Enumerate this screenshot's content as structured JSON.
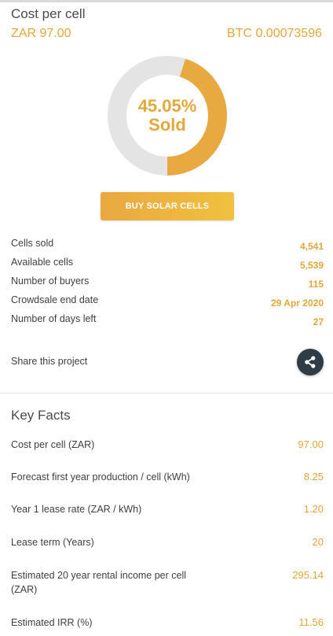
{
  "cost": {
    "title": "Cost per cell",
    "zar": "ZAR 97.00",
    "btc": "BTC 0.00073596"
  },
  "progress": {
    "percent_label": "45.05%",
    "sold_label": "Sold",
    "fraction": 0.4505,
    "filled_color": "#e8a940",
    "remaining_color": "#e4e4e4"
  },
  "buy_button": {
    "label": "BUY SOLAR CELLS"
  },
  "stats": [
    {
      "label": "Cells sold",
      "value": "4,541"
    },
    {
      "label": "Available cells",
      "value": "5,539"
    },
    {
      "label": "Number of buyers",
      "value": "115"
    },
    {
      "label": "Crowdsale end date",
      "value": "29 Apr 2020"
    },
    {
      "label": "Number of days left",
      "value": "27"
    }
  ],
  "share": {
    "label": "Share this project",
    "icon": "share-icon"
  },
  "key_facts": {
    "title": "Key Facts",
    "rows": [
      {
        "label": "Cost per cell (ZAR)",
        "value": "97.00"
      },
      {
        "label": "Forecast first year production / cell (kWh)",
        "value": "8.25"
      },
      {
        "label": "Year 1 lease rate (ZAR / kWh)",
        "value": "1.20"
      },
      {
        "label": "Lease term (Years)",
        "value": "20"
      },
      {
        "label": "Estimated 20 year rental income per cell (ZAR)",
        "value": "295.14"
      },
      {
        "label": "Estimated IRR (%)",
        "value": "11.56"
      }
    ]
  },
  "colors": {
    "accent": "#e3a73b",
    "share_button": "#2f3b45"
  }
}
